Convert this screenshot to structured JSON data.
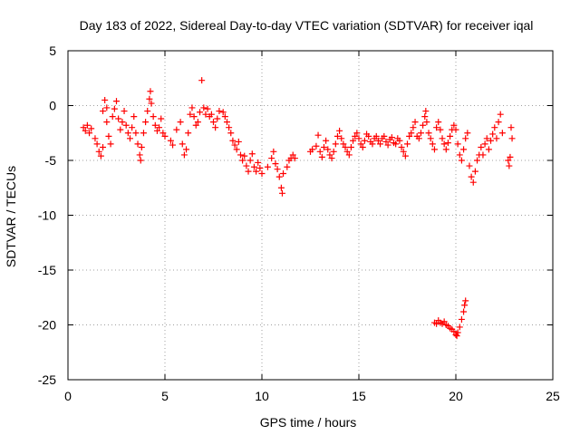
{
  "chart_data": {
    "type": "scatter",
    "title": "Day 183 of 2022, Sidereal Day-to-day VTEC variation (SDTVAR) for receiver iqal",
    "xlabel": "GPS time / hours",
    "ylabel": "SDTVAR / TECUs",
    "xlim": [
      0,
      25
    ],
    "ylim": [
      -25,
      5
    ],
    "xticks": [
      0,
      5,
      10,
      15,
      20,
      25
    ],
    "yticks": [
      -25,
      -20,
      -15,
      -10,
      -5,
      0,
      5
    ],
    "xtick_labels": [
      "0",
      "5",
      "10",
      "15",
      "20",
      "25"
    ],
    "ytick_labels": [
      "-25",
      "-20",
      "-15",
      "-10",
      "-5",
      "0",
      "5"
    ],
    "grid": true,
    "marker": "+",
    "color": "#ff0000",
    "series": [
      {
        "name": "SDTVAR",
        "points": [
          [
            0.8,
            -2.0
          ],
          [
            0.9,
            -2.3
          ],
          [
            1.0,
            -1.8
          ],
          [
            1.1,
            -2.5
          ],
          [
            1.2,
            -2.1
          ],
          [
            1.4,
            -3.0
          ],
          [
            1.5,
            -3.5
          ],
          [
            1.6,
            -4.2
          ],
          [
            1.7,
            -4.6
          ],
          [
            1.8,
            -3.8
          ],
          [
            1.8,
            -0.5
          ],
          [
            1.9,
            0.5
          ],
          [
            2.0,
            -0.2
          ],
          [
            2.0,
            -1.5
          ],
          [
            2.1,
            -2.8
          ],
          [
            2.2,
            -3.5
          ],
          [
            2.3,
            -1.0
          ],
          [
            2.4,
            -0.3
          ],
          [
            2.5,
            0.4
          ],
          [
            2.6,
            -1.2
          ],
          [
            2.7,
            -2.2
          ],
          [
            2.8,
            -1.5
          ],
          [
            2.9,
            -0.5
          ],
          [
            3.0,
            -1.8
          ],
          [
            3.1,
            -2.5
          ],
          [
            3.2,
            -3.0
          ],
          [
            3.3,
            -2.0
          ],
          [
            3.4,
            -1.0
          ],
          [
            3.5,
            -2.5
          ],
          [
            3.6,
            -3.5
          ],
          [
            3.7,
            -4.5
          ],
          [
            3.75,
            -5.0
          ],
          [
            3.8,
            -3.8
          ],
          [
            3.9,
            -2.5
          ],
          [
            4.0,
            -1.5
          ],
          [
            4.1,
            -0.5
          ],
          [
            4.2,
            0.6
          ],
          [
            4.25,
            1.3
          ],
          [
            4.3,
            0.2
          ],
          [
            4.4,
            -1.0
          ],
          [
            4.5,
            -1.8
          ],
          [
            4.6,
            -2.3
          ],
          [
            4.7,
            -2.0
          ],
          [
            4.8,
            -1.2
          ],
          [
            4.9,
            -2.5
          ],
          [
            5.0,
            -2.8
          ],
          [
            5.3,
            -3.2
          ],
          [
            5.4,
            -3.6
          ],
          [
            5.6,
            -2.2
          ],
          [
            5.8,
            -1.5
          ],
          [
            5.9,
            -3.5
          ],
          [
            6.0,
            -4.5
          ],
          [
            6.1,
            -4.0
          ],
          [
            6.2,
            -2.5
          ],
          [
            6.3,
            -0.8
          ],
          [
            6.4,
            -0.2
          ],
          [
            6.5,
            -1.0
          ],
          [
            6.6,
            -1.8
          ],
          [
            6.7,
            -1.5
          ],
          [
            6.8,
            -0.6
          ],
          [
            6.9,
            2.3
          ],
          [
            7.0,
            -0.2
          ],
          [
            7.1,
            -0.8
          ],
          [
            7.2,
            -0.3
          ],
          [
            7.3,
            -1.0
          ],
          [
            7.4,
            -0.8
          ],
          [
            7.5,
            -1.5
          ],
          [
            7.6,
            -2.0
          ],
          [
            7.7,
            -1.2
          ],
          [
            7.8,
            -0.5
          ],
          [
            8.0,
            -0.6
          ],
          [
            8.1,
            -1.0
          ],
          [
            8.2,
            -1.5
          ],
          [
            8.3,
            -2.0
          ],
          [
            8.4,
            -2.5
          ],
          [
            8.5,
            -3.2
          ],
          [
            8.6,
            -3.6
          ],
          [
            8.7,
            -4.0
          ],
          [
            8.8,
            -3.3
          ],
          [
            8.9,
            -4.5
          ],
          [
            9.0,
            -5.0
          ],
          [
            9.1,
            -4.6
          ],
          [
            9.2,
            -5.5
          ],
          [
            9.3,
            -6.0
          ],
          [
            9.4,
            -5.0
          ],
          [
            9.5,
            -4.4
          ],
          [
            9.6,
            -5.6
          ],
          [
            9.7,
            -6.0
          ],
          [
            9.8,
            -5.2
          ],
          [
            9.9,
            -5.7
          ],
          [
            10.0,
            -6.2
          ],
          [
            10.3,
            -5.6
          ],
          [
            10.5,
            -4.8
          ],
          [
            10.6,
            -4.2
          ],
          [
            10.7,
            -5.3
          ],
          [
            10.8,
            -5.8
          ],
          [
            10.9,
            -6.5
          ],
          [
            11.0,
            -7.5
          ],
          [
            11.05,
            -8.0
          ],
          [
            11.1,
            -6.2
          ],
          [
            11.3,
            -5.6
          ],
          [
            11.4,
            -5.0
          ],
          [
            11.5,
            -4.8
          ],
          [
            11.6,
            -4.5
          ],
          [
            11.7,
            -4.8
          ],
          [
            12.5,
            -4.2
          ],
          [
            12.6,
            -4.0
          ],
          [
            12.8,
            -3.7
          ],
          [
            12.9,
            -2.7
          ],
          [
            13.0,
            -4.2
          ],
          [
            13.1,
            -4.7
          ],
          [
            13.2,
            -3.8
          ],
          [
            13.3,
            -3.2
          ],
          [
            13.4,
            -4.0
          ],
          [
            13.5,
            -4.5
          ],
          [
            13.6,
            -4.8
          ],
          [
            13.7,
            -4.2
          ],
          [
            13.8,
            -3.5
          ],
          [
            13.9,
            -2.8
          ],
          [
            14.0,
            -2.3
          ],
          [
            14.1,
            -3.0
          ],
          [
            14.2,
            -3.5
          ],
          [
            14.3,
            -3.8
          ],
          [
            14.4,
            -4.2
          ],
          [
            14.5,
            -4.5
          ],
          [
            14.6,
            -3.8
          ],
          [
            14.7,
            -3.2
          ],
          [
            14.8,
            -2.8
          ],
          [
            14.9,
            -2.5
          ],
          [
            15.0,
            -3.0
          ],
          [
            15.1,
            -3.5
          ],
          [
            15.2,
            -3.8
          ],
          [
            15.3,
            -3.2
          ],
          [
            15.4,
            -2.6
          ],
          [
            15.5,
            -2.8
          ],
          [
            15.6,
            -3.3
          ],
          [
            15.7,
            -3.5
          ],
          [
            15.8,
            -3.0
          ],
          [
            15.9,
            -2.8
          ],
          [
            16.0,
            -3.2
          ],
          [
            16.1,
            -3.5
          ],
          [
            16.2,
            -3.0
          ],
          [
            16.3,
            -2.8
          ],
          [
            16.4,
            -3.3
          ],
          [
            16.5,
            -3.6
          ],
          [
            16.6,
            -3.1
          ],
          [
            16.7,
            -2.9
          ],
          [
            16.8,
            -3.4
          ],
          [
            16.9,
            -3.5
          ],
          [
            17.0,
            -3.0
          ],
          [
            17.1,
            -3.2
          ],
          [
            17.2,
            -3.8
          ],
          [
            17.3,
            -4.2
          ],
          [
            17.4,
            -4.6
          ],
          [
            17.5,
            -3.5
          ],
          [
            17.6,
            -2.8
          ],
          [
            17.7,
            -2.5
          ],
          [
            17.8,
            -2.0
          ],
          [
            17.9,
            -1.5
          ],
          [
            18.0,
            -2.8
          ],
          [
            18.1,
            -3.0
          ],
          [
            18.2,
            -2.5
          ],
          [
            18.3,
            -1.8
          ],
          [
            18.4,
            -1.0
          ],
          [
            18.45,
            -0.5
          ],
          [
            18.5,
            -1.5
          ],
          [
            18.6,
            -2.5
          ],
          [
            18.7,
            -3.0
          ],
          [
            18.8,
            -3.5
          ],
          [
            18.9,
            -4.0
          ],
          [
            19.0,
            -2.0
          ],
          [
            19.1,
            -1.5
          ],
          [
            19.2,
            -2.2
          ],
          [
            19.3,
            -3.0
          ],
          [
            19.4,
            -3.5
          ],
          [
            19.5,
            -4.0
          ],
          [
            19.6,
            -3.4
          ],
          [
            19.7,
            -2.8
          ],
          [
            19.8,
            -2.2
          ],
          [
            19.9,
            -1.8
          ],
          [
            20.0,
            -2.2
          ],
          [
            20.1,
            -3.5
          ],
          [
            20.2,
            -4.5
          ],
          [
            20.3,
            -5.0
          ],
          [
            20.4,
            -4.0
          ],
          [
            20.5,
            -3.0
          ],
          [
            20.6,
            -2.5
          ],
          [
            20.7,
            -5.5
          ],
          [
            20.8,
            -6.5
          ],
          [
            20.9,
            -7.0
          ],
          [
            21.0,
            -6.0
          ],
          [
            21.1,
            -5.0
          ],
          [
            21.2,
            -4.5
          ],
          [
            21.3,
            -3.8
          ],
          [
            21.4,
            -4.5
          ],
          [
            21.5,
            -3.5
          ],
          [
            21.6,
            -3.0
          ],
          [
            21.7,
            -4.0
          ],
          [
            21.8,
            -3.2
          ],
          [
            21.9,
            -2.6
          ],
          [
            22.0,
            -2.0
          ],
          [
            22.1,
            -3.0
          ],
          [
            22.2,
            -1.5
          ],
          [
            22.3,
            -0.8
          ],
          [
            22.4,
            -2.5
          ],
          [
            22.7,
            -5.0
          ],
          [
            22.75,
            -5.5
          ],
          [
            22.8,
            -4.7
          ],
          [
            22.85,
            -2.0
          ],
          [
            22.9,
            -3.0
          ],
          [
            18.9,
            -19.8
          ],
          [
            19.0,
            -19.9
          ],
          [
            19.1,
            -19.6
          ],
          [
            19.2,
            -19.8
          ],
          [
            19.3,
            -19.9
          ],
          [
            19.4,
            -19.7
          ],
          [
            19.5,
            -20.0
          ],
          [
            19.6,
            -20.1
          ],
          [
            19.7,
            -20.3
          ],
          [
            19.8,
            -20.4
          ],
          [
            19.9,
            -20.6
          ],
          [
            20.0,
            -20.9
          ],
          [
            20.05,
            -21.0
          ],
          [
            20.1,
            -20.7
          ],
          [
            20.2,
            -20.2
          ],
          [
            20.3,
            -19.5
          ],
          [
            20.4,
            -18.8
          ],
          [
            20.45,
            -18.2
          ],
          [
            20.5,
            -17.8
          ]
        ]
      }
    ]
  }
}
